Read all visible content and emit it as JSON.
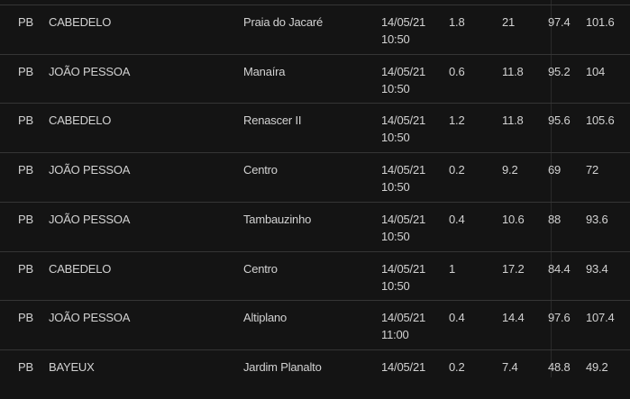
{
  "rows": [
    {
      "uf": "PB",
      "city": "CABEDELO",
      "neighborhood": "Praia do Jacaré",
      "date": "14/05/21",
      "time": "10:50",
      "v1": "1.8",
      "v2": "21",
      "v3": "97.4",
      "v4": "101.6"
    },
    {
      "uf": "PB",
      "city": "JOÃO PESSOA",
      "neighborhood": "Manaíra",
      "date": "14/05/21",
      "time": "10:50",
      "v1": "0.6",
      "v2": "11.8",
      "v3": "95.2",
      "v4": "104"
    },
    {
      "uf": "PB",
      "city": "CABEDELO",
      "neighborhood": "Renascer II",
      "date": "14/05/21",
      "time": "10:50",
      "v1": "1.2",
      "v2": "11.8",
      "v3": "95.6",
      "v4": "105.6"
    },
    {
      "uf": "PB",
      "city": "JOÃO PESSOA",
      "neighborhood": "Centro",
      "date": "14/05/21",
      "time": "10:50",
      "v1": "0.2",
      "v2": "9.2",
      "v3": "69",
      "v4": "72"
    },
    {
      "uf": "PB",
      "city": "JOÃO PESSOA",
      "neighborhood": "Tambauzinho",
      "date": "14/05/21",
      "time": "10:50",
      "v1": "0.4",
      "v2": "10.6",
      "v3": "88",
      "v4": "93.6"
    },
    {
      "uf": "PB",
      "city": "CABEDELO",
      "neighborhood": "Centro",
      "date": "14/05/21",
      "time": "10:50",
      "v1": "1",
      "v2": "17.2",
      "v3": "84.4",
      "v4": "93.4"
    },
    {
      "uf": "PB",
      "city": "JOÃO PESSOA",
      "neighborhood": "Altiplano",
      "date": "14/05/21",
      "time": "11:00",
      "v1": "0.4",
      "v2": "14.4",
      "v3": "97.6",
      "v4": "107.4"
    },
    {
      "uf": "PB",
      "city": "BAYEUX",
      "neighborhood": "Jardim Planalto",
      "date": "14/05/21",
      "time": "",
      "v1": "0.2",
      "v2": "7.4",
      "v3": "48.8",
      "v4": "49.2"
    }
  ]
}
